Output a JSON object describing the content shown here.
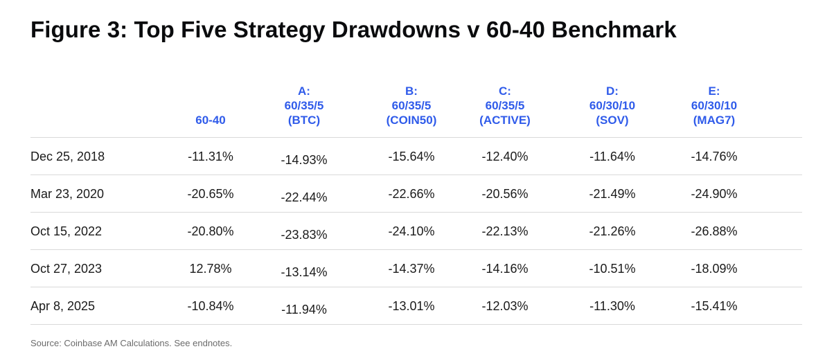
{
  "title": "Figure 3: Top Five Strategy Drawdowns v 60-40 Benchmark",
  "columns": [
    {
      "lines": [
        "60-40"
      ]
    },
    {
      "lines": [
        "A:",
        "60/35/5",
        "(BTC)"
      ]
    },
    {
      "lines": [
        "B:",
        "60/35/5",
        "(COIN50)"
      ]
    },
    {
      "lines": [
        "C:",
        "60/35/5",
        "(ACTIVE)"
      ]
    },
    {
      "lines": [
        "D:",
        "60/30/10",
        "(SOV)"
      ]
    },
    {
      "lines": [
        "E:",
        "60/30/10",
        "(MAG7)"
      ]
    }
  ],
  "rows": [
    {
      "date": "Dec 25, 2018",
      "values": [
        "-11.31%",
        "-14.93%",
        "-15.64%",
        "-12.40%",
        "-11.64%",
        "-14.76%"
      ]
    },
    {
      "date": "Mar 23, 2020",
      "values": [
        "-20.65%",
        "-22.44%",
        "-22.66%",
        "-20.56%",
        "-21.49%",
        "-24.90%"
      ]
    },
    {
      "date": "Oct 15, 2022",
      "values": [
        "-20.80%",
        "-23.83%",
        "-24.10%",
        "-22.13%",
        "-21.26%",
        "-26.88%"
      ]
    },
    {
      "date": "Oct 27, 2023",
      "values": [
        "12.78%",
        "-13.14%",
        "-14.37%",
        "-14.16%",
        "-10.51%",
        "-18.09%"
      ]
    },
    {
      "date": "Apr 8, 2025",
      "values": [
        "-10.84%",
        "-11.94%",
        "-13.01%",
        "-12.03%",
        "-11.30%",
        "-15.41%"
      ]
    }
  ],
  "source": "Source: Coinbase AM Calculations. See endnotes.",
  "colors": {
    "header_accent": "#2f5bea",
    "title": "#0a0b0d",
    "divider": "#d9d9d9",
    "source_text": "#6b6b6b"
  }
}
